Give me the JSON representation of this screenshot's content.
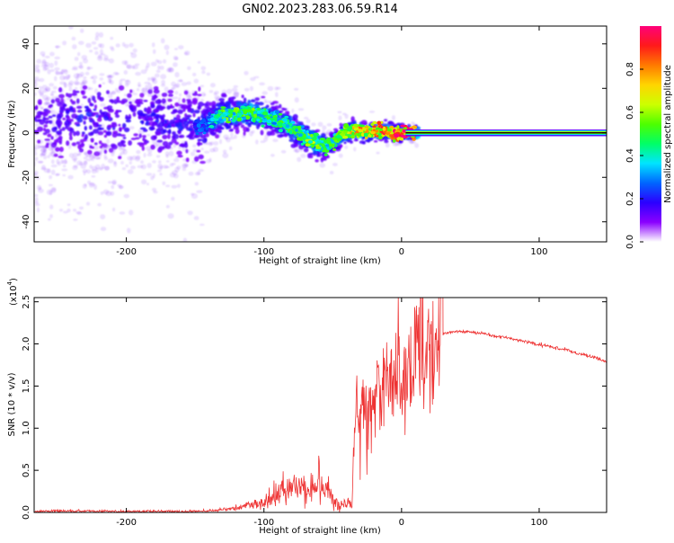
{
  "figure": {
    "title": "GN02.2023.283.06.59.R14"
  },
  "chart_data": [
    {
      "type": "heatmap",
      "xlabel": "Height of straight line (km)",
      "ylabel": "Frequency (Hz)",
      "xlim": [
        -267,
        149
      ],
      "ylim": [
        -49,
        48
      ],
      "xticks": [
        -200,
        -100,
        0,
        100
      ],
      "xtick_labels": [
        "-200",
        "-100",
        "0",
        "100"
      ],
      "yticks": [
        -40,
        -20,
        0,
        20,
        40
      ],
      "ytick_labels": [
        "-40",
        "-20",
        "0",
        "20",
        "40"
      ],
      "colorbar": {
        "label": "Normalized spectral amplitude",
        "ticks": [
          0.0,
          0.2,
          0.4,
          0.6,
          0.8
        ],
        "tick_labels": [
          "0.0",
          "0.2",
          "0.4",
          "0.6",
          "0.8"
        ],
        "range": [
          0,
          1
        ],
        "colormap": [
          "#ffffff",
          "#8a00ff",
          "#2b00ff",
          "#0066ff",
          "#00e5ff",
          "#00ff66",
          "#4dff00",
          "#ccff00",
          "#ffd500",
          "#ff7a00",
          "#ff1a1a",
          "#ff007a"
        ]
      },
      "ridge": {
        "x": [
          -260,
          -240,
          -220,
          -200,
          -180,
          -160,
          -145,
          -130,
          -110,
          -95,
          -85,
          -75,
          -65,
          -55,
          -48,
          -42,
          -35,
          -25,
          -15,
          -5,
          5,
          50,
          100,
          149
        ],
        "y": [
          5,
          6,
          7,
          4,
          6,
          3,
          3,
          8,
          9,
          7,
          4,
          0,
          -4,
          -6,
          -4,
          0,
          1,
          0,
          1,
          0,
          0,
          0,
          0,
          0
        ],
        "amplitude": [
          0.15,
          0.2,
          0.2,
          0.18,
          0.2,
          0.2,
          0.25,
          0.5,
          0.5,
          0.45,
          0.5,
          0.5,
          0.55,
          0.45,
          0.5,
          0.6,
          0.7,
          0.75,
          0.8,
          0.85,
          0.95,
          0.95,
          0.95,
          0.95
        ]
      },
      "spread_hz": {
        "x": [
          -267,
          -200,
          -145,
          -140,
          -100,
          -60,
          -40,
          0,
          5,
          149
        ],
        "y": [
          30,
          28,
          22,
          8,
          7,
          6,
          4,
          3,
          2,
          2
        ]
      }
    },
    {
      "type": "line",
      "xlabel": "Height of straight line (km)",
      "ylabel": "SNR (10 * v/v)",
      "y_multiplier": "(x10",
      "y_multiplier_exp": "4",
      "y_multiplier_close": ")",
      "xlim": [
        -267,
        149
      ],
      "ylim": [
        0,
        2.55
      ],
      "xticks": [
        -200,
        -100,
        0,
        100
      ],
      "xtick_labels": [
        "-200",
        "-100",
        "0",
        "100"
      ],
      "yticks": [
        0,
        0.5,
        1.0,
        1.5,
        2.0,
        2.5
      ],
      "ytick_labels": [
        "0.0",
        "0.5",
        "1.0",
        "1.5",
        "2.0",
        "2.5"
      ],
      "series": [
        {
          "color": "#ee3333",
          "x": [
            -267,
            -250,
            -230,
            -200,
            -180,
            -160,
            -140,
            -130,
            -120,
            -110,
            -100,
            -95,
            -90,
            -85,
            -80,
            -75,
            -70,
            -65,
            -60,
            -55,
            -50,
            -45,
            -40,
            -36,
            -35,
            -33,
            -31,
            -29,
            -27,
            -25,
            -23,
            -20,
            -17,
            -14,
            -11,
            -8,
            -5,
            -2,
            0,
            3,
            6,
            9,
            12,
            15,
            18,
            21,
            25,
            30,
            35,
            40,
            45,
            50,
            60,
            70,
            80,
            90,
            100,
            110,
            120,
            130,
            140,
            149
          ],
          "y": [
            0.01,
            0.02,
            0.015,
            0.01,
            0.015,
            0.01,
            0.02,
            0.03,
            0.05,
            0.08,
            0.12,
            0.18,
            0.22,
            0.25,
            0.3,
            0.28,
            0.32,
            0.35,
            0.38,
            0.3,
            0.15,
            0.1,
            0.12,
            0.08,
            0.6,
            1.3,
            0.8,
            1.1,
            1.4,
            1.2,
            1.5,
            1.3,
            1.6,
            1.45,
            1.5,
            1.55,
            1.4,
            1.7,
            1.65,
            1.6,
            1.75,
            1.8,
            1.9,
            1.95,
            1.95,
            2.0,
            2.05,
            2.12,
            2.14,
            2.15,
            2.15,
            2.14,
            2.12,
            2.09,
            2.06,
            2.03,
            1.99,
            1.96,
            1.93,
            1.88,
            1.84,
            1.78
          ]
        }
      ],
      "peak": {
        "x": 14,
        "y": 2.55
      }
    }
  ]
}
